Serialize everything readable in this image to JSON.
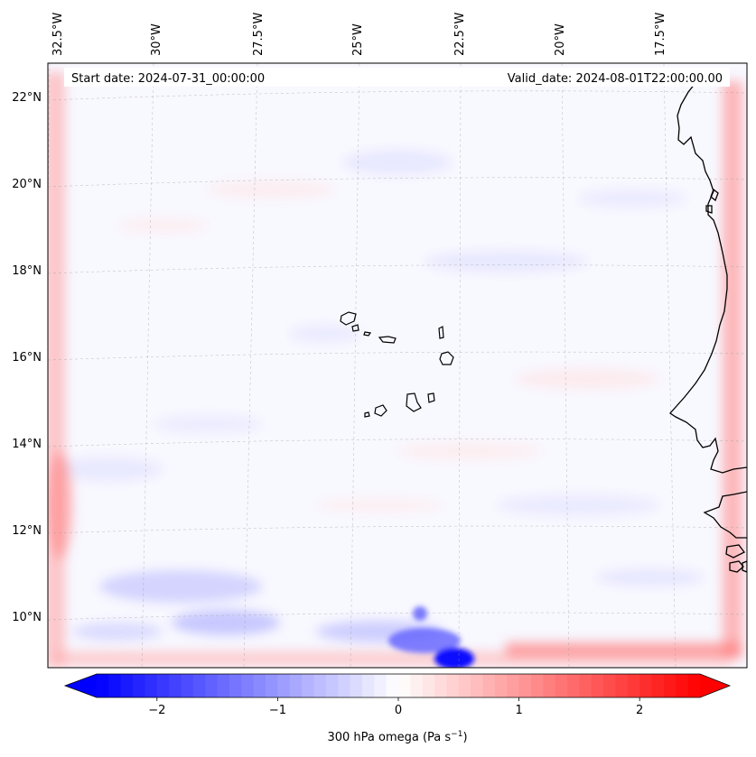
{
  "header": {
    "start_date": "Start date: 2024-07-31_00:00:00",
    "valid_date": "Valid_date: 2024-08-01T22:00:00.00"
  },
  "map": {
    "field": "300 hPa omega",
    "lon_labels": [
      "32.5°W",
      "30°W",
      "27.5°W",
      "25°W",
      "22.5°W",
      "20°W",
      "17.5°W"
    ],
    "lat_labels": [
      "22°N",
      "20°N",
      "18°N",
      "16°N",
      "14°N",
      "12°N",
      "10°N"
    ],
    "features": [
      "Cape Verde islands",
      "West African coastline"
    ]
  },
  "colorbar": {
    "label_prefix": "300 hPa omega (Pa s",
    "label_exp": "−1",
    "label_suffix": ")",
    "range": [
      -2.5,
      2.5
    ],
    "ticks": [
      "−2",
      "−1",
      "0",
      "1",
      "2"
    ],
    "tick_values": [
      -2,
      -1,
      0,
      1,
      2
    ],
    "colors": {
      "negative": "#0000ff",
      "zero": "#ffffff",
      "positive": "#ff0000"
    }
  }
}
